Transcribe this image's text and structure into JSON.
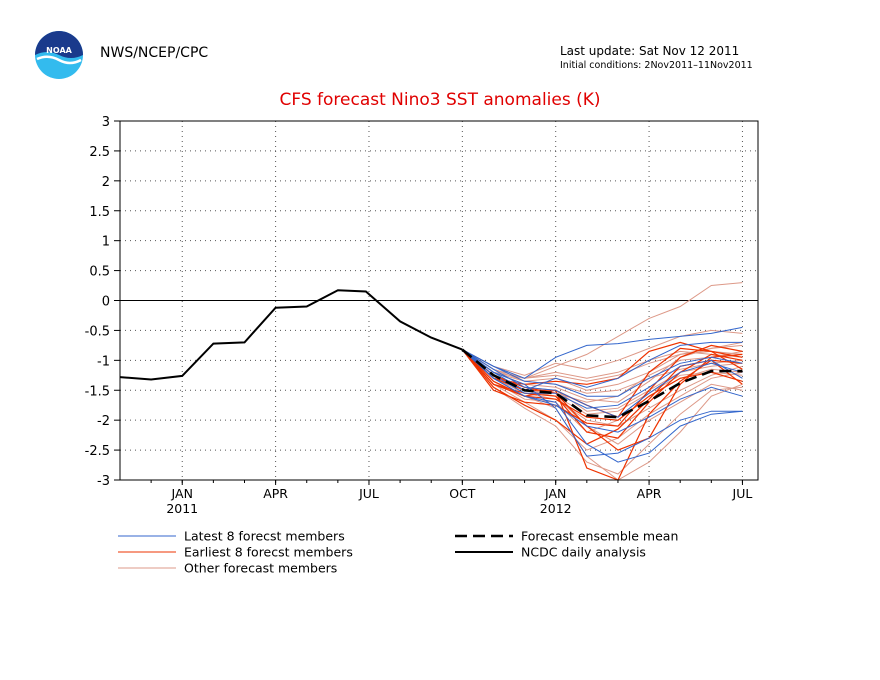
{
  "header": {
    "agency": "NWS/NCEP/CPC",
    "last_update": "Last update: Sat Nov 12 2011",
    "initial_conditions": "Initial conditions: 2Nov2011–11Nov2011",
    "logo_text": "NOAA"
  },
  "chart_data": {
    "type": "line",
    "title": "CFS forecast Nino3 SST anomalies (K)",
    "xlabel": "",
    "ylabel": "",
    "ylim": [
      -3,
      3
    ],
    "xlim": [
      0,
      20.5
    ],
    "grid": true,
    "y_ticks": [
      "3",
      "2.5",
      "2",
      "1.5",
      "1",
      "0.5",
      "0",
      "-0.5",
      "-1",
      "-1.5",
      "-2",
      "-2.5",
      "-3"
    ],
    "x_ticks": [
      {
        "label": "JAN",
        "x": 2,
        "year": "2011"
      },
      {
        "label": "APR",
        "x": 5,
        "year": ""
      },
      {
        "label": "JUL",
        "x": 8,
        "year": ""
      },
      {
        "label": "OCT",
        "x": 11,
        "year": ""
      },
      {
        "label": "JAN",
        "x": 14,
        "year": "2012"
      },
      {
        "label": "APR",
        "x": 17,
        "year": ""
      },
      {
        "label": "JUL",
        "x": 20,
        "year": ""
      }
    ],
    "colors": {
      "latest": "#3366cc",
      "earliest": "#ee3300",
      "other": "#dd9988",
      "mean": "#000000",
      "analysis": "#000000"
    },
    "legend": [
      {
        "label": "Latest 8 forecst members",
        "style": "latest"
      },
      {
        "label": "Earliest 8 forecst members",
        "style": "earliest"
      },
      {
        "label": "Other forecast members",
        "style": "other"
      },
      {
        "label": "Forecast ensemble mean",
        "style": "mean"
      },
      {
        "label": "NCDC daily analysis",
        "style": "analysis"
      }
    ],
    "observed": {
      "name": "NCDC daily analysis",
      "x": [
        0,
        1,
        2,
        3,
        4,
        5,
        6,
        7,
        7.9,
        9,
        10,
        11
      ],
      "y": [
        -1.28,
        -1.32,
        -1.26,
        -0.72,
        -0.7,
        -0.12,
        -0.1,
        0.17,
        0.15,
        -0.35,
        -0.62,
        -0.82
      ]
    },
    "ensemble_mean": {
      "name": "Forecast ensemble mean",
      "x": [
        11,
        12,
        13,
        14,
        15,
        16,
        17,
        18,
        19,
        20
      ],
      "y": [
        -0.82,
        -1.25,
        -1.5,
        -1.55,
        -1.92,
        -1.95,
        -1.68,
        -1.38,
        -1.18,
        -1.18
      ]
    },
    "forecast_x": [
      11,
      12,
      13,
      14,
      15,
      16,
      17,
      18,
      19,
      20
    ],
    "latest_members": [
      [
        -0.82,
        -1.1,
        -1.3,
        -0.95,
        -0.75,
        -0.72,
        -0.65,
        -0.6,
        -0.55,
        -0.45
      ],
      [
        -0.82,
        -1.2,
        -1.4,
        -1.8,
        -2.6,
        -2.55,
        -2.3,
        -2.0,
        -1.85,
        -1.85
      ],
      [
        -0.82,
        -1.3,
        -1.6,
        -1.7,
        -2.4,
        -2.7,
        -2.55,
        -2.1,
        -1.9,
        -1.85
      ],
      [
        -0.82,
        -1.15,
        -1.45,
        -1.5,
        -1.75,
        -1.95,
        -1.55,
        -1.2,
        -1.05,
        -1.2
      ],
      [
        -0.82,
        -1.2,
        -1.5,
        -1.3,
        -1.45,
        -1.3,
        -1.0,
        -0.75,
        -0.7,
        -0.7
      ],
      [
        -0.82,
        -1.25,
        -1.55,
        -1.55,
        -1.8,
        -1.75,
        -1.45,
        -1.1,
        -1.0,
        -1.3
      ],
      [
        -0.82,
        -1.1,
        -1.35,
        -1.4,
        -1.6,
        -1.6,
        -1.3,
        -1.05,
        -0.95,
        -1.05
      ],
      [
        -0.82,
        -1.3,
        -1.6,
        -1.75,
        -2.1,
        -2.2,
        -1.95,
        -1.65,
        -1.45,
        -1.6
      ]
    ],
    "earliest_members": [
      [
        -0.82,
        -1.4,
        -1.55,
        -1.6,
        -2.2,
        -2.3,
        -1.7,
        -1.2,
        -0.9,
        -1.0
      ],
      [
        -0.82,
        -1.5,
        -1.7,
        -1.75,
        -2.05,
        -2.1,
        -1.5,
        -0.95,
        -0.75,
        -0.85
      ],
      [
        -0.82,
        -1.35,
        -1.6,
        -1.5,
        -1.75,
        -1.95,
        -1.2,
        -0.8,
        -0.85,
        -1.15
      ],
      [
        -0.82,
        -1.3,
        -1.4,
        -1.35,
        -1.4,
        -1.3,
        -0.85,
        -0.7,
        -0.85,
        -0.95
      ],
      [
        -0.82,
        -1.45,
        -1.75,
        -2.0,
        -2.4,
        -2.15,
        -1.65,
        -1.1,
        -1.0,
        -1.4
      ],
      [
        -0.82,
        -1.25,
        -1.45,
        -1.55,
        -2.1,
        -2.5,
        -2.3,
        -1.4,
        -0.95,
        -0.9
      ],
      [
        -0.82,
        -1.4,
        -1.6,
        -1.65,
        -1.95,
        -2.0,
        -1.6,
        -1.3,
        -1.2,
        -1.35
      ],
      [
        -0.82,
        -1.3,
        -1.5,
        -1.5,
        -2.8,
        -3.0,
        -1.9,
        -1.35,
        -1.0,
        -1.05
      ]
    ],
    "other_members": [
      [
        -0.82,
        -1.2,
        -1.3,
        -1.1,
        -0.9,
        -0.6,
        -0.3,
        -0.1,
        0.25,
        0.3
      ],
      [
        -0.82,
        -1.1,
        -1.25,
        -1.05,
        -1.15,
        -1.0,
        -0.8,
        -0.6,
        -0.5,
        -0.55
      ],
      [
        -0.82,
        -1.15,
        -1.35,
        -1.3,
        -1.5,
        -1.4,
        -1.2,
        -0.9,
        -0.8,
        -0.7
      ],
      [
        -0.82,
        -1.3,
        -1.5,
        -1.6,
        -2.1,
        -2.4,
        -2.0,
        -1.7,
        -1.4,
        -1.5
      ],
      [
        -0.82,
        -1.25,
        -1.45,
        -1.5,
        -1.85,
        -1.8,
        -1.5,
        -1.2,
        -1.1,
        -1.05
      ],
      [
        -0.82,
        -1.35,
        -1.6,
        -1.8,
        -2.6,
        -3.0,
        -2.7,
        -2.2,
        -1.6,
        -1.4
      ],
      [
        -0.82,
        -1.2,
        -1.4,
        -1.45,
        -1.65,
        -1.7,
        -1.35,
        -0.95,
        -0.8,
        -0.75
      ],
      [
        -0.82,
        -1.4,
        -1.7,
        -2.0,
        -2.5,
        -2.3,
        -1.9,
        -1.6,
        -1.3,
        -1.2
      ],
      [
        -0.82,
        -1.1,
        -1.3,
        -1.2,
        -1.3,
        -1.2,
        -1.0,
        -0.85,
        -0.9,
        -0.95
      ],
      [
        -0.82,
        -1.3,
        -1.55,
        -1.65,
        -2.0,
        -2.1,
        -1.8,
        -1.5,
        -1.25,
        -1.1
      ],
      [
        -0.82,
        -1.25,
        -1.5,
        -1.55,
        -1.7,
        -1.6,
        -1.25,
        -1.0,
        -0.95,
        -0.85
      ],
      [
        -0.82,
        -1.35,
        -1.65,
        -1.7,
        -2.2,
        -2.0,
        -1.6,
        -1.3,
        -1.15,
        -1.2
      ],
      [
        -0.82,
        -1.2,
        -1.35,
        -1.4,
        -1.55,
        -1.5,
        -1.3,
        -1.15,
        -1.05,
        -1.0
      ],
      [
        -0.82,
        -1.3,
        -1.5,
        -1.6,
        -1.9,
        -1.85,
        -1.55,
        -1.25,
        -1.2,
        -1.25
      ],
      [
        -0.82,
        -1.45,
        -1.8,
        -2.1,
        -2.7,
        -2.9,
        -2.4,
        -1.9,
        -1.5,
        -1.45
      ],
      [
        -0.82,
        -1.15,
        -1.3,
        -1.25,
        -1.35,
        -1.25,
        -1.05,
        -0.9,
        -0.85,
        -0.9
      ]
    ]
  }
}
